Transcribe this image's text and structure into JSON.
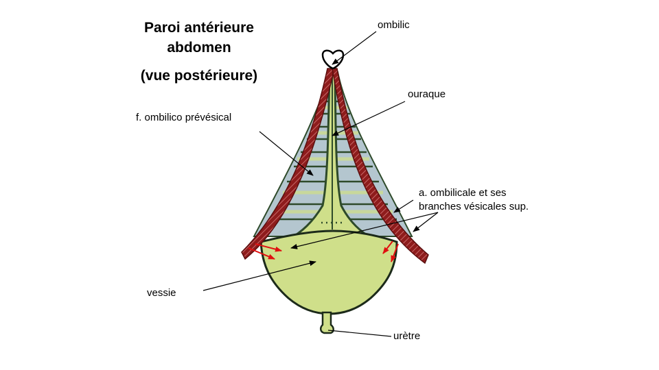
{
  "title": {
    "line1": "Paroi antérieure",
    "line2": "abdomen",
    "line3": "(vue postérieure)"
  },
  "labels": {
    "ombilic": "ombilic",
    "ouraque": "ouraque",
    "fascia": "f. ombilico prévésical",
    "artere_line1": "a. ombilicale et ses",
    "artere_line2": "branches vésicales sup.",
    "vessie": "vessie",
    "uretre": "urètre"
  },
  "colors": {
    "fascia_blue": "#b4c6cf",
    "bladder_green": "#cfdf8a",
    "outline_green": "#2e4a2a",
    "artery_red": "#8e1c1c",
    "arrow_red": "#e01010"
  }
}
